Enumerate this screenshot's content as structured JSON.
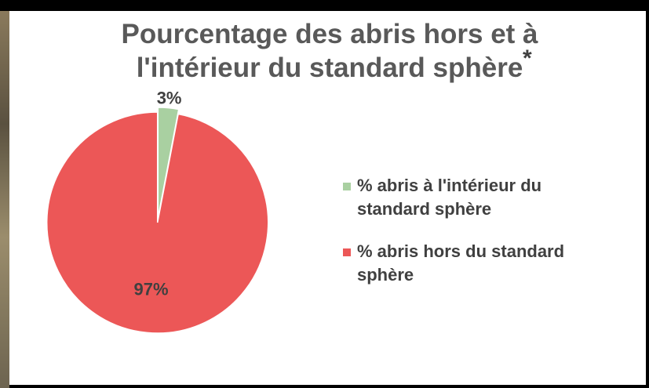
{
  "chart_data": {
    "type": "pie",
    "title": "Pourcentage des abris hors et à\nl'intérieur du standard sphère",
    "title_note": "*",
    "categories": [
      "% abris à l'intérieur du standard sphère",
      "% abris hors du standard sphère"
    ],
    "values": [
      3,
      97
    ],
    "value_labels": [
      "3%",
      "97%"
    ],
    "colors": [
      "#a9d0a1",
      "#ec5757"
    ],
    "legend": "right"
  }
}
